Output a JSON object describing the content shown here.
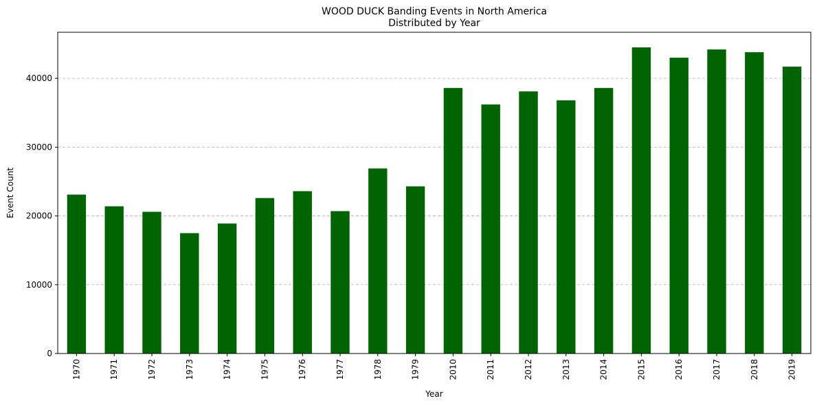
{
  "chart_data": {
    "type": "bar",
    "title": "WOOD DUCK Banding Events in North America",
    "subtitle": "Distributed by Year",
    "xlabel": "Year",
    "ylabel": "Event Count",
    "categories": [
      "1970",
      "1971",
      "1972",
      "1973",
      "1974",
      "1975",
      "1976",
      "1977",
      "1978",
      "1979",
      "2010",
      "2011",
      "2012",
      "2013",
      "2014",
      "2015",
      "2016",
      "2017",
      "2018",
      "2019"
    ],
    "values": [
      23100,
      21400,
      20600,
      17500,
      18900,
      22600,
      23600,
      20700,
      26900,
      24300,
      38600,
      36200,
      38100,
      36800,
      38600,
      44500,
      43000,
      44200,
      43800,
      41700
    ],
    "ylim": [
      0,
      46700
    ],
    "yticks": [
      0,
      10000,
      20000,
      30000,
      40000
    ],
    "ytick_labels": [
      "0",
      "10000",
      "20000",
      "30000",
      "40000"
    ],
    "grid": "horizontal dashed",
    "bar_color": "#006400"
  }
}
